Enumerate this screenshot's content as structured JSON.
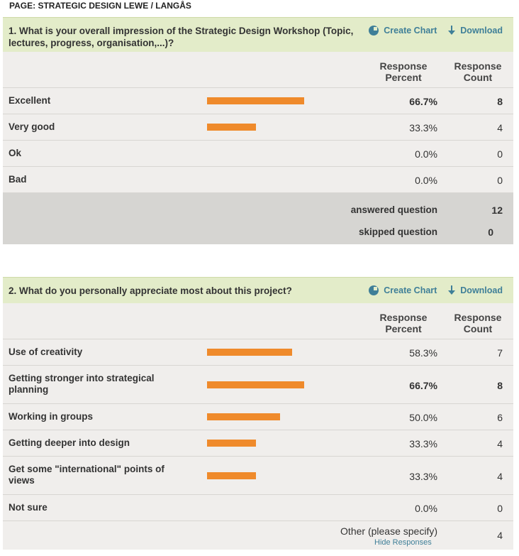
{
  "page_title": "PAGE: STRATEGIC DESIGN LEWE / LANGÅS",
  "tools": {
    "create_chart": "Create Chart",
    "download": "Download"
  },
  "columns": {
    "percent": "Response Percent",
    "count": "Response Count"
  },
  "colors": {
    "bar": "#ef8a2b",
    "header_bg": "#e3ecc9",
    "link": "#3f7f98"
  },
  "q1": {
    "title": "1. What is your overall impression of the Strategic Design Workshop (Topic, lectures, progress, organisation,...)?",
    "rows": [
      {
        "label": "Excellent",
        "percent": "66.7%",
        "count": "8",
        "fraction": 0.667,
        "bold": true
      },
      {
        "label": "Very good",
        "percent": "33.3%",
        "count": "4",
        "fraction": 0.333,
        "bold": false
      },
      {
        "label": "Ok",
        "percent": "0.0%",
        "count": "0",
        "fraction": 0,
        "bold": false
      },
      {
        "label": "Bad",
        "percent": "0.0%",
        "count": "0",
        "fraction": 0,
        "bold": false
      }
    ],
    "answered_label": "answered question",
    "answered_value": "12",
    "skipped_label": "skipped question",
    "skipped_value": "0"
  },
  "q2": {
    "title": "2. What do you personally appreciate most about this project?",
    "rows": [
      {
        "label": "Use of creativity",
        "percent": "58.3%",
        "count": "7",
        "fraction": 0.583,
        "bold": false
      },
      {
        "label": "Getting stronger into strategical planning",
        "percent": "66.7%",
        "count": "8",
        "fraction": 0.667,
        "bold": true
      },
      {
        "label": "Working in groups",
        "percent": "50.0%",
        "count": "6",
        "fraction": 0.5,
        "bold": false
      },
      {
        "label": "Getting deeper into design",
        "percent": "33.3%",
        "count": "4",
        "fraction": 0.333,
        "bold": false
      },
      {
        "label": "Get some \"international\" points of views",
        "percent": "33.3%",
        "count": "4",
        "fraction": 0.333,
        "bold": false
      },
      {
        "label": "Not sure",
        "percent": "0.0%",
        "count": "0",
        "fraction": 0,
        "bold": false
      }
    ],
    "other_label": "Other (please specify)",
    "other_count": "4",
    "hide_responses": "Hide Responses"
  }
}
